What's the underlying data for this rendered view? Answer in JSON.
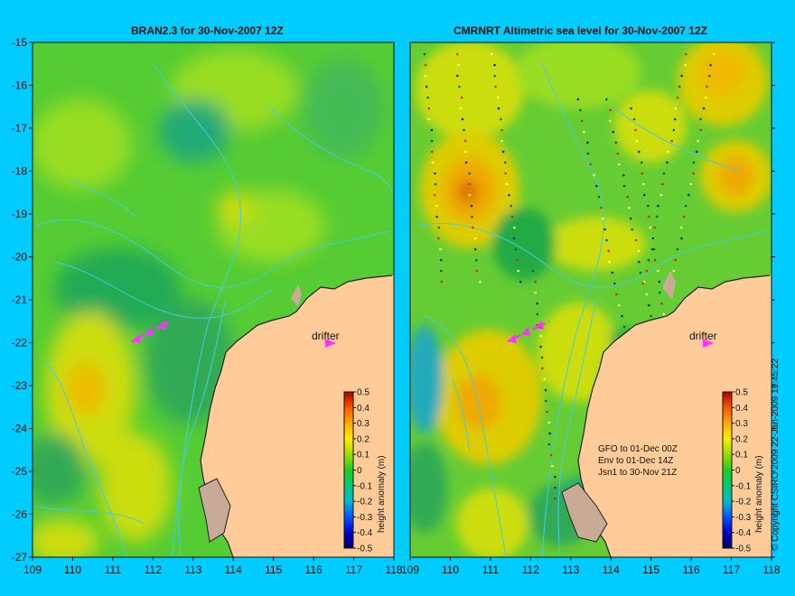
{
  "panels": [
    {
      "title": "BRAN2.3 for 30-Nov-2007 12Z",
      "drifter_label": "drifter",
      "xlim": [
        109,
        118
      ],
      "ylim": [
        -27,
        -15
      ]
    },
    {
      "title": "CMRNRT Altimetric sea level  for 30-Nov-2007 12Z",
      "drifter_label": "drifter",
      "xlim": [
        109,
        118
      ],
      "ylim": [
        -27,
        -15
      ],
      "legend_lines": [
        "GFO to 01-Dec 00Z",
        "Env to 01-Dec 14Z",
        "Jsn1 to 30-Nov 21Z"
      ]
    }
  ],
  "x_ticks": [
    "109",
    "110",
    "111",
    "112",
    "113",
    "114",
    "115",
    "116",
    "117",
    "118"
  ],
  "y_ticks": [
    "-15",
    "-16",
    "-17",
    "-18",
    "-19",
    "-20",
    "-21",
    "-22",
    "-23",
    "-24",
    "-25",
    "-26",
    "-27"
  ],
  "colorbar": {
    "label": "height anomaly (m)",
    "ticks": [
      "0.5",
      "0.4",
      "0.3",
      "0.2",
      "0.1",
      "0",
      "-0.1",
      "-0.2",
      "-0.3",
      "-0.4",
      "-0.5"
    ],
    "range": [
      -0.5,
      0.5
    ]
  },
  "copyright": "© Copyright CSIRO 2009  22-Jan-2009 19:45:22",
  "colors": {
    "background": "#00ccff",
    "land": "#ffcc99",
    "reef": "#c8aa96",
    "contour": "#44ccdd",
    "drifter": "#ff33ff"
  }
}
